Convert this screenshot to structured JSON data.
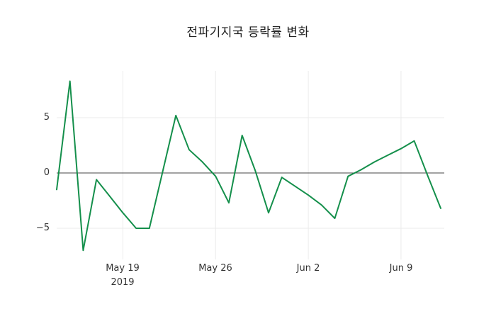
{
  "chart_data": {
    "type": "line",
    "title": "전파기지국 등락률 변화",
    "xlabel": "",
    "ylabel": "",
    "x": [
      "2019-05-14",
      "2019-05-15",
      "2019-05-16",
      "2019-05-17",
      "2019-05-18",
      "2019-05-19",
      "2019-05-20",
      "2019-05-21",
      "2019-05-22",
      "2019-05-23",
      "2019-05-24",
      "2019-05-25",
      "2019-05-26",
      "2019-05-27",
      "2019-05-28",
      "2019-05-29",
      "2019-05-30",
      "2019-05-31",
      "2019-06-01",
      "2019-06-02",
      "2019-06-03",
      "2019-06-04",
      "2019-06-05",
      "2019-06-06",
      "2019-06-07",
      "2019-06-08",
      "2019-06-09",
      "2019-06-10",
      "2019-06-11",
      "2019-06-12"
    ],
    "values": [
      -1.5,
      8.3,
      -7.0,
      -0.6,
      -2.1,
      -3.6,
      -5.0,
      -5.0,
      0.1,
      5.2,
      2.1,
      1.0,
      -0.3,
      -2.7,
      3.4,
      0.2,
      -3.6,
      -0.4,
      -1.2,
      -2.0,
      -2.9,
      -4.1,
      -0.3,
      0.3,
      1.0,
      1.6,
      2.2,
      2.9,
      -0.2,
      -3.2
    ],
    "xticks": [
      {
        "date": "2019-05-19",
        "label": "May 19",
        "sublabel": "2019"
      },
      {
        "date": "2019-05-26",
        "label": "May 26"
      },
      {
        "date": "2019-06-02",
        "label": "Jun 2"
      },
      {
        "date": "2019-06-09",
        "label": "Jun 9"
      }
    ],
    "yticks": [
      {
        "value": 5,
        "label": "5"
      },
      {
        "value": 0,
        "label": "0"
      },
      {
        "value": -5,
        "label": "−5"
      }
    ],
    "ylim": [
      -8.5,
      10.5
    ],
    "grid": true,
    "legend": false,
    "colors": {
      "line": "#148f4b",
      "grid": "#ebebeb",
      "zero_line": "#444444",
      "text": "#333333",
      "background": "#ffffff"
    }
  }
}
